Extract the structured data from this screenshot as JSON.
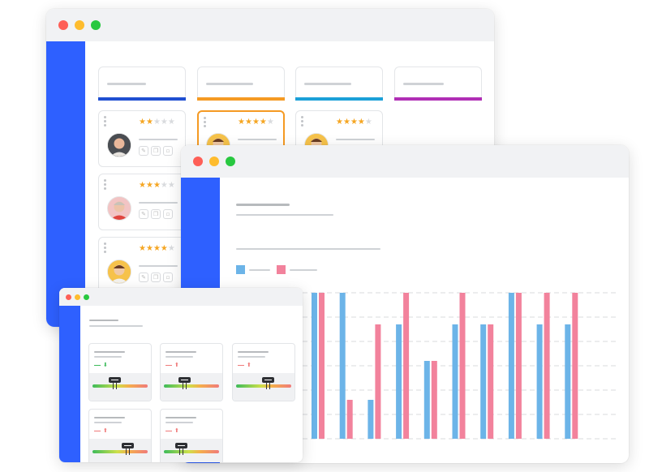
{
  "theme": {
    "sidebar": "#2e60ff",
    "titlebar": "#f1f2f4",
    "dot_red": "#fe5f57",
    "dot_yellow": "#febc2e",
    "dot_green": "#28c840",
    "star": "#f5a623"
  },
  "kanban": {
    "column_accents": [
      "#1f4fd1",
      "#f59a23",
      "#1ba0d8",
      "#b02fb5"
    ],
    "cards": [
      {
        "rating": 2,
        "selected": false
      },
      {
        "rating": 4,
        "selected": true
      },
      {
        "rating": 4,
        "selected": false
      },
      {
        "rating": 3,
        "selected": false
      },
      {
        "rating": 4,
        "selected": false
      }
    ],
    "card_icons": [
      "edit-icon",
      "copy-icon",
      "delete-icon"
    ]
  },
  "chart_data": {
    "type": "bar",
    "title": "",
    "xlabel": "",
    "ylabel": "",
    "ylim": [
      0,
      6
    ],
    "grid": true,
    "legend_position": "top-left",
    "series": [
      {
        "color": "#6cb4e8",
        "values": [
          6,
          6,
          1.6,
          4.7,
          3.2,
          4.7,
          4.7,
          6,
          4.7,
          4.7
        ]
      },
      {
        "color": "#f2829c",
        "values": [
          6,
          1.6,
          4.7,
          6,
          3.2,
          6,
          4.7,
          6,
          6,
          6
        ]
      }
    ]
  },
  "kpis": [
    {
      "trend": "down",
      "trend_color": "#3dbb5a",
      "value": 0.38
    },
    {
      "trend": "up",
      "trend_color": "#f07a7a",
      "value": 0.36
    },
    {
      "trend": "up",
      "trend_color": "#f07a7a",
      "value": 0.55
    },
    {
      "trend": "up",
      "trend_color": "#f07a7a",
      "value": 0.62
    },
    {
      "trend": "up",
      "trend_color": "#f07a7a",
      "value": 0.3
    }
  ]
}
